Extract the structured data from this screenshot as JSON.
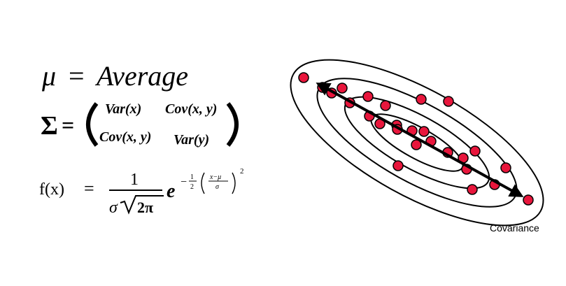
{
  "formulas": {
    "mean": {
      "mu": "μ",
      "equals": "=",
      "word": "Average"
    },
    "covariance_matrix": {
      "sigma": "Σ",
      "equals": "=",
      "cells": [
        [
          "Var(x)",
          "Cov(x, y)"
        ],
        [
          "Cov(x, y)",
          "Var(y)"
        ]
      ]
    },
    "density": {
      "lhs": "f(x)",
      "equals": "=",
      "numerator": "1",
      "denominator_sigma": "σ",
      "denominator_root": "2π",
      "exp_base": "e",
      "exp_sign": "−",
      "half_num": "1",
      "half_den": "2",
      "frac_num": "x−μ",
      "frac_den": "σ",
      "square": "2"
    }
  },
  "diagram": {
    "caption": "Covariance",
    "point_color": "#e8163c",
    "stroke_color": "#000000",
    "point_count": 26
  }
}
